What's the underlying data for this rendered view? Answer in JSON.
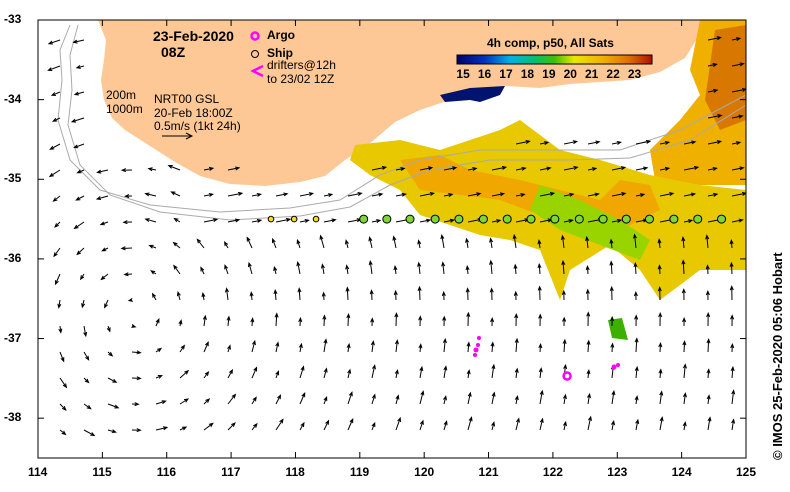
{
  "title": {
    "date": "23-Feb-2020",
    "time": "08Z"
  },
  "legend": {
    "argo_label": "Argo",
    "ship_label": "Ship",
    "drifters_line1": "drifters@12h",
    "drifters_line2": "to 23/02 12Z",
    "drifter_symbol": "<",
    "isobath_200": "200m",
    "isobath_1000": "1000m",
    "altimetry_line1": "NRT00 GSL",
    "altimetry_line2": "20-Feb 18:00Z",
    "altimetry_line3": "0.5m/s (1kt 24h)"
  },
  "colorbar": {
    "title": "4h comp, p50, All Sats",
    "ticks": [
      "15",
      "16",
      "17",
      "18",
      "19",
      "20",
      "21",
      "22",
      "23"
    ],
    "range": [
      14.7,
      23.8
    ]
  },
  "axes": {
    "lon_ticks": [
      "114",
      "115",
      "116",
      "117",
      "118",
      "119",
      "120",
      "121",
      "122",
      "123",
      "124",
      "125"
    ],
    "lat_ticks": [
      "-33",
      "-34",
      "-35",
      "-36",
      "-37",
      "-38"
    ],
    "lon_range": [
      114,
      125
    ],
    "lat_range": [
      -38.5,
      -33
    ]
  },
  "credit": "© IMOS 25-Feb-2020 05:06 Hobart",
  "colors": {
    "land": "#fdc896",
    "argo": "#ff00ff",
    "ship_fill": "#7fd63a",
    "ship_fill_west": "#ffe000"
  },
  "ship_positions_lon": [
    117.62,
    117.98,
    118.32,
    119.06,
    119.42,
    119.78,
    120.17,
    120.54,
    120.92,
    121.29,
    121.66,
    122.03,
    122.41,
    122.78,
    123.14,
    123.5,
    123.88,
    124.25,
    124.62
  ],
  "argo_positions": [
    [
      122.22,
      -37.47
    ]
  ]
}
